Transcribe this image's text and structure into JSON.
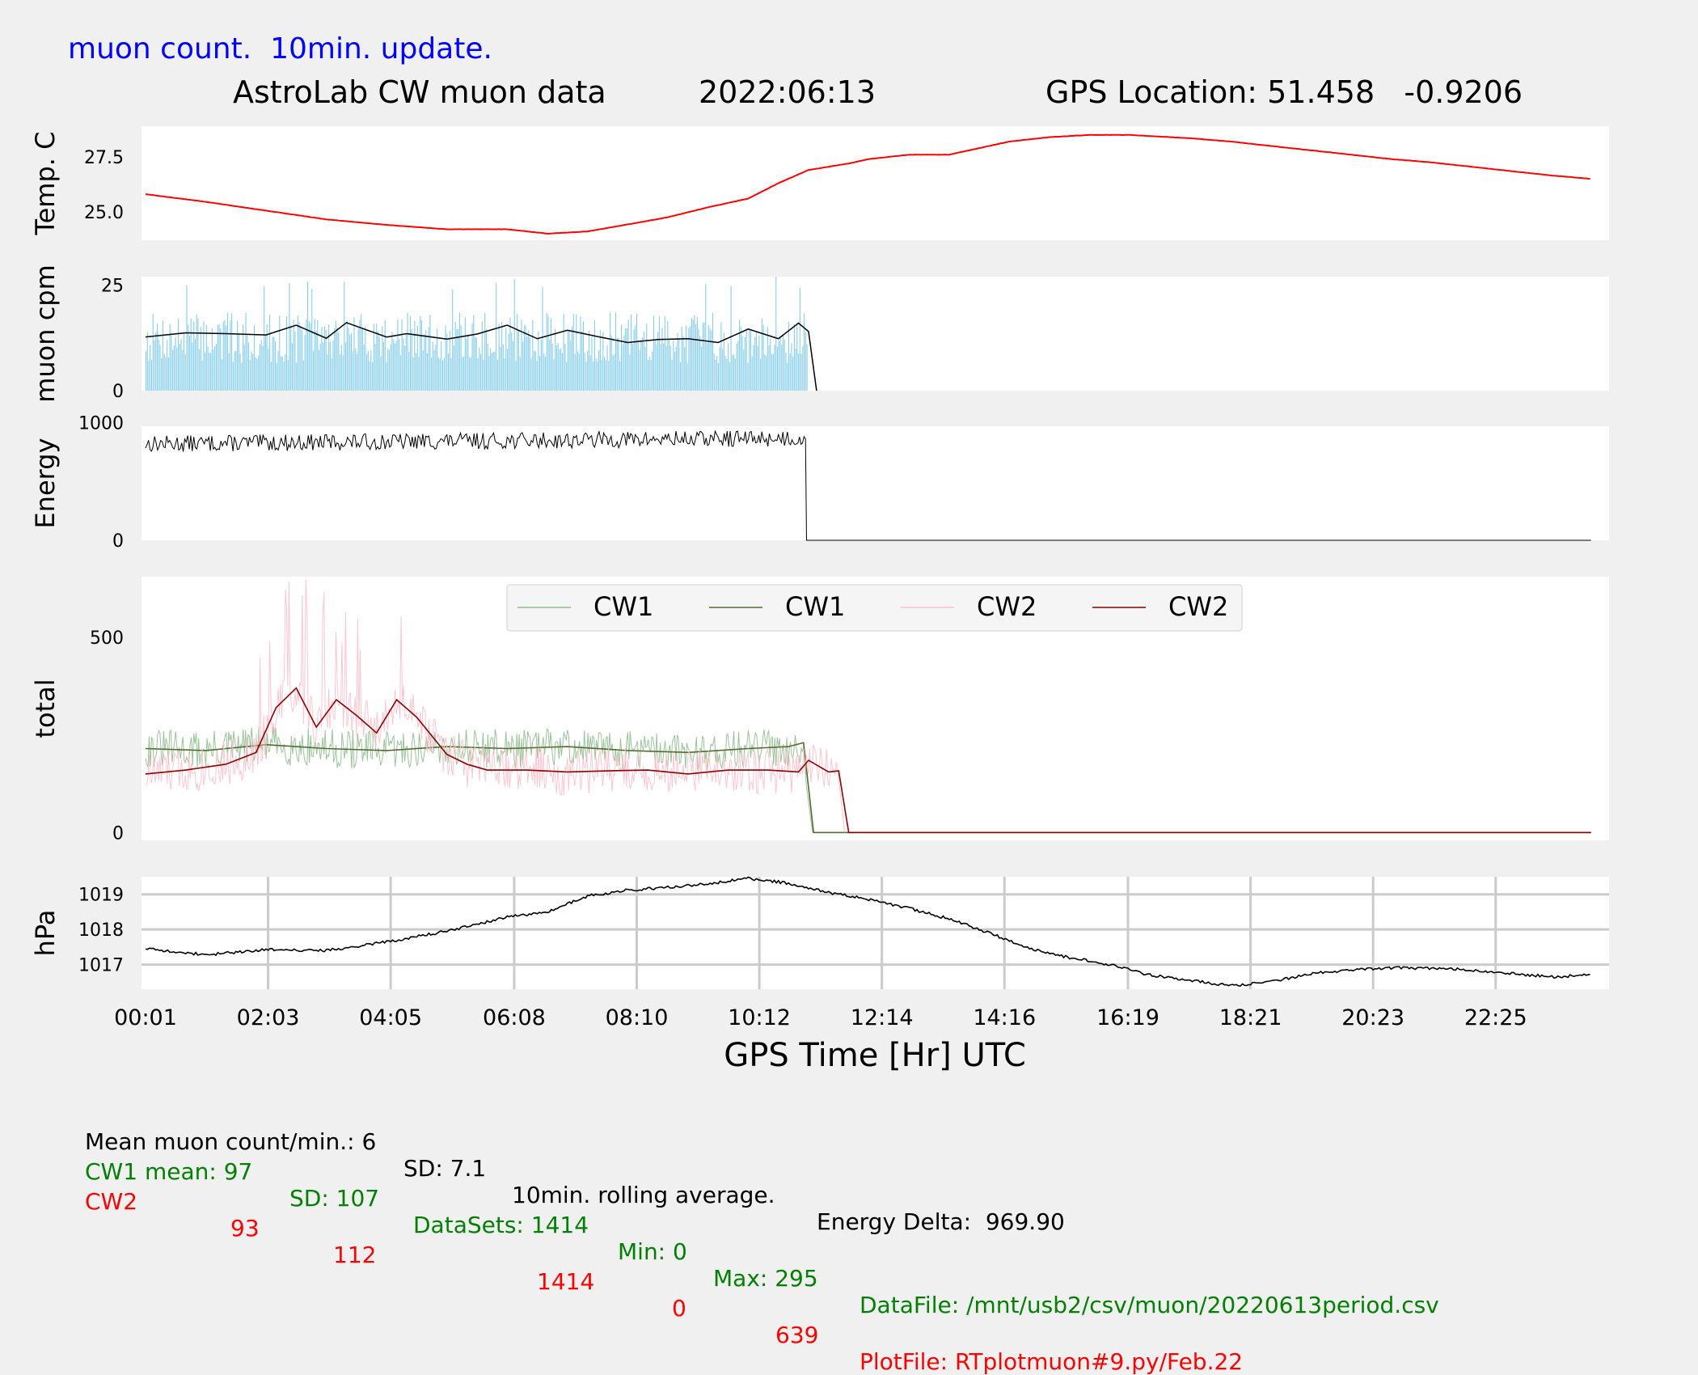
{
  "header": {
    "subtitle": "muon count.  10min. update.",
    "title": "AstroLab CW muon data",
    "date": "2022:06:13",
    "gps": "GPS Location: 51.458   -0.9206"
  },
  "footer": {
    "line1": {
      "mean": "Mean muon count/min.: 6",
      "sd": "SD: 7.1",
      "rolling": "10min. rolling average.",
      "energy_delta": "Energy Delta:  969.90"
    },
    "cw1": {
      "label": "CW1 mean: 97",
      "sd": "SD: 107",
      "datasets": "DataSets: 1414",
      "min": "Min: 0",
      "max": "Max: 295",
      "file": "DataFile: /mnt/usb2/csv/muon/20220613period.csv"
    },
    "cw2": {
      "label": "CW2",
      "mean": "93",
      "sd": "112",
      "datasets": "1414",
      "min": "0",
      "max": "639",
      "file": "PlotFile: RTplotmuon#9.py/Feb.22"
    }
  },
  "chart_data": [
    {
      "type": "line",
      "ylabel": "Temp. C",
      "yticks": [
        25.0,
        27.5
      ],
      "ytick_labels": [
        "25.0",
        "27.5"
      ],
      "ylim": [
        23.7,
        28.9
      ],
      "xlim": [
        0,
        1440
      ],
      "grid": false,
      "series": [
        {
          "color": "#ff0000",
          "x": [
            0,
            60,
            120,
            180,
            240,
            300,
            360,
            400,
            440,
            490,
            520,
            560,
            600,
            630,
            660,
            700,
            720,
            760,
            800,
            830,
            860,
            900,
            940,
            980,
            1000,
            1040,
            1080,
            1120,
            1160,
            1200,
            1240,
            1280,
            1320,
            1360,
            1400,
            1439
          ],
          "y": [
            25.8,
            25.45,
            25.05,
            24.65,
            24.4,
            24.2,
            24.2,
            24.0,
            24.1,
            24.5,
            24.75,
            25.2,
            25.6,
            26.3,
            26.9,
            27.2,
            27.4,
            27.6,
            27.6,
            27.9,
            28.2,
            28.4,
            28.5,
            28.5,
            28.45,
            28.35,
            28.2,
            28.0,
            27.8,
            27.6,
            27.4,
            27.25,
            27.05,
            26.85,
            26.65,
            26.5
          ]
        }
      ]
    },
    {
      "type": "bar",
      "ylabel": "muon cpm",
      "yticks": [
        0,
        25
      ],
      "ytick_labels": [
        "0",
        "25"
      ],
      "ylim": [
        0,
        27
      ],
      "xlim": [
        0,
        1440
      ],
      "grid": false,
      "series": [
        {
          "name": "counts per minute",
          "color": "#87ceeb",
          "x_range": [
            0,
            658
          ],
          "mean": 12.5,
          "spread": 6,
          "peak": 27
        },
        {
          "name": "10min. rolling average",
          "color": "#000000",
          "x": [
            0,
            40,
            80,
            120,
            150,
            180,
            200,
            240,
            260,
            300,
            330,
            360,
            390,
            420,
            450,
            480,
            510,
            540,
            570,
            600,
            630,
            650,
            660,
            668
          ],
          "y": [
            12.7,
            13.7,
            13.5,
            13.2,
            15.5,
            12.4,
            16.1,
            12.7,
            13.5,
            12.2,
            13.4,
            15.5,
            12.3,
            14.3,
            12.8,
            11.4,
            12.1,
            12.3,
            11.4,
            14.6,
            12.3,
            16.0,
            14.0,
            0
          ]
        }
      ]
    },
    {
      "type": "line",
      "ylabel": "Energy",
      "yticks": [
        0,
        1000
      ],
      "ytick_labels": [
        "0",
        "1000"
      ],
      "ylim": [
        0,
        970
      ],
      "xlim": [
        0,
        1440
      ],
      "grid": false,
      "series": [
        {
          "color": "#000000",
          "x_active": [
            0,
            658
          ],
          "mean_start": 820,
          "mean_end": 870,
          "noise": 70,
          "after_value": 0
        }
      ]
    },
    {
      "type": "line",
      "ylabel": "total",
      "yticks": [
        0,
        500
      ],
      "ytick_labels": [
        "0",
        "500"
      ],
      "ylim": [
        -20,
        655
      ],
      "xlim": [
        0,
        1440
      ],
      "grid": false,
      "legend": "top-center",
      "legend_labels": [
        "CW1",
        "CW1",
        "CW2",
        "CW2"
      ],
      "series": [
        {
          "name": "CW1",
          "color": "#8fbc8f",
          "role": "raw",
          "x_end": 658,
          "mean": 215,
          "noise": 50
        },
        {
          "name": "CW1",
          "color": "#556b2f",
          "role": "avg",
          "x": [
            0,
            60,
            120,
            180,
            240,
            300,
            360,
            420,
            480,
            540,
            600,
            640,
            655,
            665,
            1439
          ],
          "y": [
            215,
            210,
            225,
            215,
            210,
            220,
            215,
            220,
            210,
            205,
            215,
            220,
            230,
            0,
            0
          ]
        },
        {
          "name": "CW2",
          "color": "#ffc0cb",
          "role": "raw",
          "x_end": 690,
          "mean": 180,
          "noise": 60
        },
        {
          "name": "CW2",
          "color": "#8b0000",
          "role": "avg",
          "x": [
            0,
            40,
            80,
            110,
            130,
            150,
            170,
            190,
            210,
            230,
            250,
            270,
            300,
            320,
            340,
            380,
            420,
            460,
            500,
            540,
            580,
            620,
            650,
            660,
            680,
            690,
            700,
            1439
          ],
          "y": [
            150,
            160,
            175,
            205,
            320,
            370,
            270,
            340,
            300,
            255,
            340,
            295,
            200,
            175,
            160,
            160,
            155,
            158,
            160,
            150,
            160,
            160,
            155,
            185,
            155,
            158,
            0,
            0
          ]
        }
      ]
    },
    {
      "type": "line",
      "ylabel": "hPa",
      "yticks": [
        1017,
        1018,
        1019
      ],
      "ytick_labels": [
        "1017",
        "1018",
        "1019"
      ],
      "ylim": [
        1016.3,
        1019.5
      ],
      "xlim": [
        0,
        1440
      ],
      "grid": true,
      "xticks": [
        0,
        122,
        244,
        367,
        489,
        611,
        733,
        855,
        978,
        1100,
        1222,
        1344
      ],
      "xtick_labels": [
        "00:01",
        "02:03",
        "04:05",
        "06:08",
        "08:10",
        "10:12",
        "12:14",
        "14:16",
        "16:19",
        "18:21",
        "20:23",
        "22:25"
      ],
      "xlabel": "GPS Time  [Hr] UTC",
      "series": [
        {
          "color": "#000000",
          "x": [
            0,
            60,
            120,
            180,
            240,
            300,
            360,
            400,
            440,
            480,
            520,
            560,
            600,
            640,
            680,
            720,
            760,
            800,
            840,
            880,
            920,
            960,
            1000,
            1040,
            1080,
            1120,
            1160,
            1200,
            1240,
            1280,
            1320,
            1360,
            1400,
            1439
          ],
          "y": [
            1017.45,
            1017.28,
            1017.42,
            1017.4,
            1017.65,
            1017.95,
            1018.35,
            1018.5,
            1018.95,
            1019.12,
            1019.2,
            1019.3,
            1019.45,
            1019.32,
            1019.05,
            1018.85,
            1018.6,
            1018.3,
            1017.9,
            1017.45,
            1017.2,
            1017.0,
            1016.7,
            1016.55,
            1016.4,
            1016.5,
            1016.75,
            1016.85,
            1016.9,
            1016.9,
            1016.85,
            1016.75,
            1016.65,
            1016.7
          ]
        }
      ]
    }
  ]
}
